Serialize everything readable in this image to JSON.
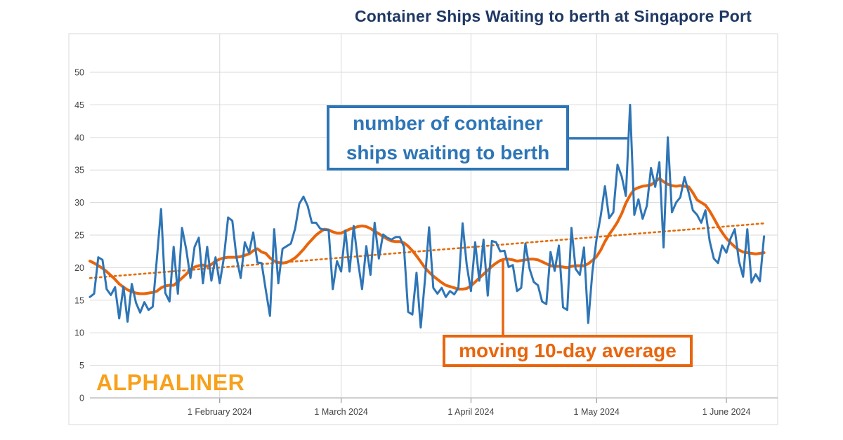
{
  "title": "Container Ships Waiting to berth at Singapore Port",
  "logo_text": "ALPHALINER",
  "annotations": {
    "blue_label_line1": "number of container",
    "blue_label_line2": "ships waiting to berth",
    "orange_label": "moving 10-day average"
  },
  "colors": {
    "title": "#1f3864",
    "blue_series": "#2e75b6",
    "orange_series": "#e8650d",
    "trend_dotted": "#e36c0a",
    "logo_orange": "#f7a11c",
    "gridline": "#d9d9d9",
    "axis_line": "#bfbfbf",
    "tick_text": "#444444"
  },
  "chart_data": {
    "type": "line",
    "title": "Container Ships Waiting to berth at Singapore Port",
    "xlabel": "",
    "ylabel": "",
    "x_axis": {
      "start_date": "1 January 2024",
      "end_date": "10 June 2024",
      "frequency": "daily",
      "tick_labels": [
        "1 February 2024",
        "1 March 2024",
        "1 April 2024",
        "1 May 2024",
        "1 June 2024"
      ],
      "tick_day_offsets": [
        31,
        60,
        91,
        121,
        152
      ],
      "total_days": 162
    },
    "y_axis": {
      "min": 0,
      "max": 50,
      "tick_step": 5,
      "ticks": [
        0,
        5,
        10,
        15,
        20,
        25,
        30,
        35,
        40,
        45,
        50
      ]
    },
    "grid": true,
    "legend_position": "annotation-boxes",
    "series": [
      {
        "name": "number of container ships waiting to berth",
        "color": "#2e75b6",
        "values": [
          15.5,
          16.0,
          21.6,
          21.2,
          16.7,
          15.8,
          17.0,
          12.2,
          17.1,
          11.7,
          17.5,
          14.6,
          13.1,
          14.7,
          13.5,
          14.0,
          21.5,
          29.0,
          16.1,
          14.8,
          23.2,
          16.0,
          26.1,
          22.8,
          18.4,
          23.2,
          24.6,
          17.6,
          23.2,
          18.0,
          21.6,
          17.6,
          21.5,
          27.7,
          27.2,
          21.6,
          18.4,
          23.9,
          22.3,
          25.4,
          20.8,
          20.7,
          16.6,
          12.6,
          25.9,
          17.6,
          22.9,
          23.3,
          23.7,
          26.0,
          29.8,
          30.9,
          29.5,
          26.9,
          26.9,
          26.0,
          25.8,
          25.8,
          16.7,
          21.0,
          19.4,
          25.7,
          19.4,
          26.4,
          21.0,
          16.7,
          23.3,
          18.9,
          26.9,
          21.4,
          25.1,
          24.6,
          24.3,
          24.7,
          24.7,
          23.2,
          13.2,
          12.8,
          19.2,
          10.8,
          18.0,
          26.2,
          16.9,
          16.0,
          16.9,
          15.5,
          16.4,
          15.9,
          16.9,
          26.8,
          20.4,
          16.4,
          23.9,
          18.0,
          24.3,
          15.7,
          24.1,
          23.9,
          22.5,
          22.6,
          20.1,
          20.4,
          16.4,
          16.9,
          23.7,
          19.8,
          17.8,
          17.3,
          14.8,
          14.4,
          22.4,
          19.5,
          23.4,
          13.9,
          13.5,
          26.1,
          19.8,
          18.9,
          23.1,
          11.5,
          19.4,
          24.4,
          28.0,
          32.5,
          27.6,
          28.5,
          35.8,
          34.0,
          31.0,
          45.0,
          28.1,
          30.5,
          27.5,
          29.5,
          35.3,
          32.4,
          36.2,
          23.1,
          40.0,
          28.5,
          30.0,
          30.8,
          33.9,
          31.5,
          28.8,
          28.1,
          26.9,
          28.8,
          24.1,
          21.4,
          20.7,
          23.4,
          22.3,
          24.5,
          25.9,
          21.0,
          18.6,
          25.9,
          17.7,
          19.0,
          17.9,
          24.8
        ]
      },
      {
        "name": "moving 10-day average",
        "color": "#e8650d",
        "values": [
          21.0,
          20.7,
          20.3,
          19.9,
          19.4,
          18.8,
          18.2,
          17.5,
          17.0,
          16.6,
          16.3,
          16.1,
          16.0,
          16.0,
          16.1,
          16.2,
          16.4,
          16.9,
          17.2,
          17.3,
          17.3,
          17.8,
          18.4,
          19.0,
          19.7,
          20.1,
          20.3,
          20.4,
          20.2,
          20.5,
          21.0,
          21.3,
          21.5,
          21.6,
          21.6,
          21.6,
          21.7,
          21.9,
          22.1,
          22.6,
          22.9,
          22.4,
          22.2,
          21.5,
          21.0,
          20.8,
          20.7,
          20.8,
          21.1,
          21.5,
          22.1,
          22.8,
          23.6,
          24.3,
          25.0,
          25.5,
          25.9,
          25.8,
          25.5,
          25.3,
          25.3,
          25.6,
          25.9,
          26.1,
          26.3,
          26.4,
          26.3,
          26.0,
          25.6,
          25.2,
          24.8,
          24.4,
          24.1,
          24.0,
          24.0,
          23.8,
          23.3,
          22.6,
          21.8,
          20.9,
          20.0,
          19.3,
          18.7,
          18.2,
          17.7,
          17.3,
          17.1,
          16.9,
          16.7,
          16.7,
          16.8,
          17.2,
          17.8,
          18.4,
          19.0,
          19.6,
          20.2,
          20.7,
          21.1,
          21.3,
          21.3,
          21.2,
          21.0,
          21.1,
          21.2,
          21.3,
          21.3,
          21.2,
          20.9,
          20.6,
          20.3,
          20.2,
          20.2,
          20.1,
          20.0,
          20.2,
          20.3,
          20.3,
          20.3,
          20.6,
          21.1,
          21.7,
          22.7,
          24.0,
          25.1,
          26.0,
          27.0,
          28.3,
          29.9,
          31.1,
          32.0,
          32.3,
          32.5,
          32.6,
          32.7,
          33.2,
          33.7,
          33.2,
          32.8,
          32.6,
          32.5,
          32.6,
          32.5,
          32.4,
          31.5,
          30.4,
          30.0,
          29.6,
          28.7,
          27.6,
          26.4,
          25.4,
          24.5,
          23.8,
          23.2,
          22.7,
          22.4,
          22.3,
          22.2,
          22.1,
          22.2,
          22.3
        ]
      }
    ],
    "trend_line": {
      "style": "dotted",
      "color": "#e36c0a",
      "start_value": 18.4,
      "end_value": 26.8
    }
  }
}
